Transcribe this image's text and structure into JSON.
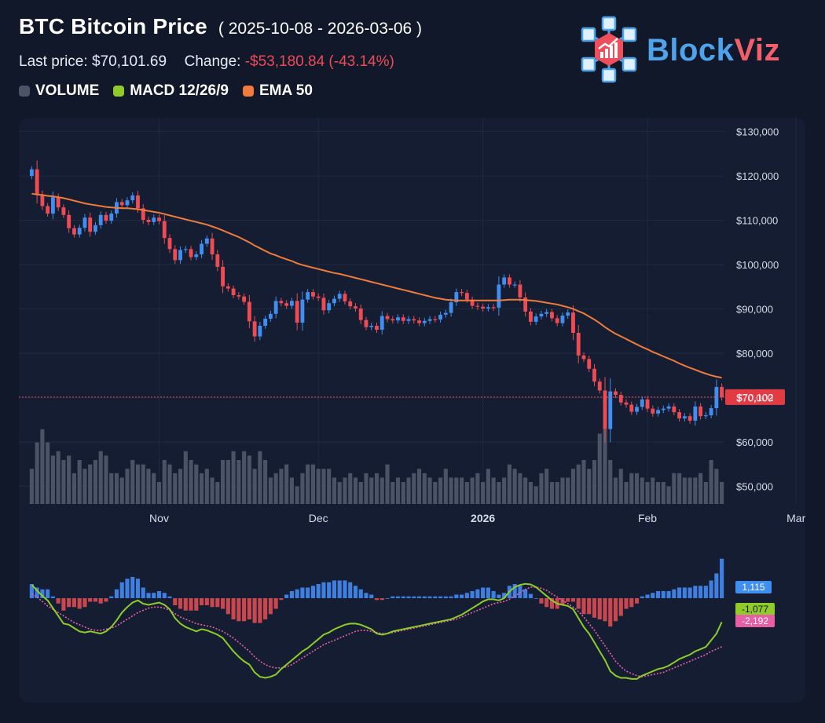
{
  "header": {
    "title": "BTC Bitcoin Price",
    "date_range": "( 2025-10-08 - 2026-03-06 )",
    "last_price_label": "Last price:",
    "last_price_value": "$70,101.69",
    "change_label": "Change:",
    "change_value": "-$53,180.84 (-43.14%)",
    "legend": [
      {
        "label": "VOLUME",
        "color": "#4b5466"
      },
      {
        "label": "MACD 12/26/9",
        "color": "#8fcc2a"
      },
      {
        "label": "EMA 50",
        "color": "#f07b3c"
      }
    ]
  },
  "brand": {
    "part1": "Block",
    "part2": "Viz",
    "icon": "blockchain-chart-icon"
  },
  "chart_data": {
    "type": "candlestick",
    "colors": {
      "up": "#3f8ef0",
      "down": "#ee4b53",
      "volume": "#4b5466",
      "ema": "#f07b3c",
      "macd": "#8fcc2a",
      "signal": "#e85fa8",
      "hist_up": "#3f7fe0",
      "hist_down": "#c9474f"
    },
    "price_axis": {
      "ylim": [
        46000,
        131000
      ],
      "ticks": [
        "$130,000",
        "$120,000",
        "$110,000",
        "$100,000",
        "$90,000",
        "$80,000",
        "$70,000",
        "$60,000",
        "$50,000"
      ],
      "tick_values": [
        130000,
        120000,
        110000,
        100000,
        90000,
        80000,
        70000,
        60000,
        50000
      ]
    },
    "x_tick_labels": [
      "Nov",
      "Dec",
      "2026",
      "Feb",
      "Mar"
    ],
    "x_tick_dates": [
      "2025-11-01",
      "2025-12-01",
      "2026-01-01",
      "2026-02-01",
      "2026-03-01"
    ],
    "start_date": "2025-10-08",
    "last_price_label": "$70,102",
    "last_price": 70102,
    "macd_labels": {
      "histogram": "1,115",
      "macd": "-1,077",
      "signal": "-2,192"
    },
    "macd_values": {
      "histogram": 1115,
      "macd": -1077,
      "signal": -2192
    },
    "close": [
      121500,
      115800,
      113200,
      111500,
      115200,
      112900,
      111200,
      108200,
      106800,
      108300,
      110600,
      107400,
      108900,
      111200,
      109900,
      111500,
      114100,
      113400,
      114500,
      115600,
      112700,
      110100,
      109600,
      110600,
      109800,
      106000,
      103500,
      101000,
      103300,
      103500,
      101700,
      102300,
      104700,
      105900,
      102300,
      99500,
      95100,
      94600,
      93100,
      92800,
      91600,
      87200,
      83800,
      86200,
      87800,
      88900,
      91800,
      91300,
      90700,
      91800,
      86900,
      92100,
      93800,
      92800,
      92500,
      89700,
      91300,
      92300,
      93400,
      91700,
      90600,
      90100,
      87500,
      85900,
      86200,
      85300,
      88400,
      87700,
      87400,
      88100,
      87300,
      87700,
      87400,
      86800,
      87300,
      87700,
      87600,
      88700,
      89100,
      91500,
      93800,
      93600,
      92100,
      90700,
      90500,
      90100,
      90400,
      90300,
      95500,
      97100,
      95500,
      95500,
      92600,
      89400,
      87100,
      88300,
      88900,
      89300,
      87900,
      86800,
      88500,
      89200,
      84600,
      79500,
      78700,
      76500,
      73600,
      71600,
      62900,
      71400,
      70600,
      68900,
      68400,
      66800,
      67900,
      69600,
      67500,
      66400,
      67200,
      67500,
      68000,
      66700,
      65300,
      65800,
      64800,
      68000,
      65800,
      66000,
      67600,
      72400,
      70102
    ],
    "volume": [
      8,
      14,
      17,
      14,
      11,
      12,
      10,
      11,
      7,
      10,
      8,
      9,
      10,
      12,
      11,
      7,
      7,
      6,
      8,
      10,
      9,
      9,
      8,
      7,
      5,
      10,
      9,
      7,
      8,
      12,
      10,
      9,
      7,
      8,
      6,
      5,
      10,
      10,
      12,
      10,
      12,
      11,
      8,
      12,
      10,
      6,
      7,
      8,
      9,
      6,
      4,
      7,
      9,
      9,
      8,
      8,
      8,
      6,
      5,
      6,
      7,
      6,
      5,
      7,
      6,
      7,
      6,
      9,
      5,
      6,
      5,
      6,
      7,
      8,
      7,
      6,
      5,
      6,
      8,
      6,
      6,
      6,
      5,
      6,
      7,
      5,
      8,
      6,
      5,
      6,
      9,
      8,
      7,
      6,
      5,
      4,
      7,
      8,
      5,
      5,
      6,
      6,
      8,
      9,
      10,
      8,
      10,
      16,
      17,
      10,
      6,
      8,
      5,
      7,
      7,
      6,
      5,
      6,
      5,
      5,
      4,
      7,
      7,
      6,
      6,
      6,
      7,
      5,
      10,
      8,
      5
    ],
    "ema": [
      116000,
      115800,
      115700,
      115500,
      115400,
      115200,
      115000,
      114700,
      114400,
      114100,
      113800,
      113600,
      113400,
      113200,
      113000,
      112900,
      112800,
      112700,
      112700,
      112600,
      112500,
      112300,
      112100,
      111900,
      111700,
      111400,
      111100,
      110800,
      110500,
      110200,
      109900,
      109600,
      109300,
      109000,
      108600,
      108200,
      107700,
      107200,
      106700,
      106200,
      105600,
      105000,
      104300,
      103700,
      103100,
      102500,
      102100,
      101600,
      101200,
      100800,
      100300,
      99900,
      99600,
      99300,
      99000,
      98700,
      98400,
      98100,
      97900,
      97600,
      97300,
      97000,
      96700,
      96400,
      96100,
      95800,
      95500,
      95200,
      94900,
      94600,
      94300,
      94000,
      93700,
      93400,
      93100,
      92800,
      92500,
      92300,
      92100,
      92000,
      91900,
      91900,
      91900,
      91900,
      91900,
      91900,
      91900,
      91900,
      91900,
      92000,
      92100,
      92100,
      92100,
      92000,
      91900,
      91800,
      91600,
      91400,
      91200,
      91000,
      90700,
      90400,
      90000,
      89500,
      89000,
      88300,
      87600,
      86800,
      85900,
      85100,
      84400,
      83800,
      83200,
      82600,
      82000,
      81400,
      80900,
      80300,
      79800,
      79300,
      78800,
      78300,
      77700,
      77200,
      76700,
      76300,
      75800,
      75400,
      75000,
      74700,
      74500
    ],
    "macd": [
      600,
      350,
      100,
      -100,
      -450,
      -800,
      -1150,
      -1200,
      -1350,
      -1500,
      -1550,
      -1500,
      -1550,
      -1600,
      -1500,
      -1300,
      -1000,
      -650,
      -400,
      -200,
      -100,
      -250,
      -300,
      -250,
      -200,
      -300,
      -500,
      -900,
      -1150,
      -1300,
      -1400,
      -1500,
      -1400,
      -1450,
      -1550,
      -1650,
      -1800,
      -2100,
      -2400,
      -2650,
      -2850,
      -3000,
      -3350,
      -3550,
      -3600,
      -3550,
      -3450,
      -3200,
      -3000,
      -2800,
      -2600,
      -2400,
      -2250,
      -2050,
      -1850,
      -1650,
      -1550,
      -1400,
      -1300,
      -1200,
      -1150,
      -1150,
      -1200,
      -1300,
      -1400,
      -1600,
      -1650,
      -1600,
      -1500,
      -1450,
      -1400,
      -1350,
      -1300,
      -1250,
      -1200,
      -1150,
      -1100,
      -1050,
      -1000,
      -950,
      -850,
      -750,
      -600,
      -450,
      -300,
      -150,
      -50,
      -50,
      -100,
      0,
      300,
      500,
      600,
      650,
      620,
      500,
      300,
      100,
      -100,
      -250,
      -300,
      -350,
      -500,
      -900,
      -1300,
      -1600,
      -2000,
      -2400,
      -2800,
      -3300,
      -3500,
      -3600,
      -3600,
      -3650,
      -3650,
      -3500,
      -3400,
      -3300,
      -3200,
      -3150,
      -3050,
      -2900,
      -2750,
      -2650,
      -2550,
      -2400,
      -2300,
      -2200,
      -1900,
      -1600,
      -1077
    ],
    "signal": [
      200,
      50,
      -150,
      -350,
      -500,
      -650,
      -800,
      -950,
      -1100,
      -1200,
      -1300,
      -1400,
      -1450,
      -1450,
      -1400,
      -1350,
      -1250,
      -1100,
      -950,
      -800,
      -650,
      -550,
      -450,
      -400,
      -400,
      -450,
      -550,
      -700,
      -850,
      -950,
      -1050,
      -1150,
      -1200,
      -1250,
      -1300,
      -1400,
      -1500,
      -1650,
      -1800,
      -2000,
      -2200,
      -2400,
      -2650,
      -2850,
      -3000,
      -3100,
      -3150,
      -3150,
      -3100,
      -3000,
      -2850,
      -2700,
      -2550,
      -2400,
      -2250,
      -2100,
      -2000,
      -1900,
      -1800,
      -1700,
      -1600,
      -1500,
      -1450,
      -1450,
      -1500,
      -1550,
      -1600,
      -1600,
      -1550,
      -1500,
      -1450,
      -1400,
      -1350,
      -1300,
      -1250,
      -1200,
      -1150,
      -1100,
      -1050,
      -1000,
      -950,
      -850,
      -750,
      -650,
      -550,
      -450,
      -350,
      -250,
      -200,
      -150,
      -50,
      100,
      250,
      400,
      500,
      500,
      450,
      350,
      200,
      50,
      -100,
      -250,
      -400,
      -600,
      -850,
      -1150,
      -1450,
      -1800,
      -2150,
      -2500,
      -2850,
      -3100,
      -3300,
      -3400,
      -3500,
      -3550,
      -3500,
      -3450,
      -3400,
      -3350,
      -3250,
      -3150,
      -3050,
      -2950,
      -2850,
      -2750,
      -2650,
      -2550,
      -2400,
      -2300,
      -2192
    ]
  }
}
